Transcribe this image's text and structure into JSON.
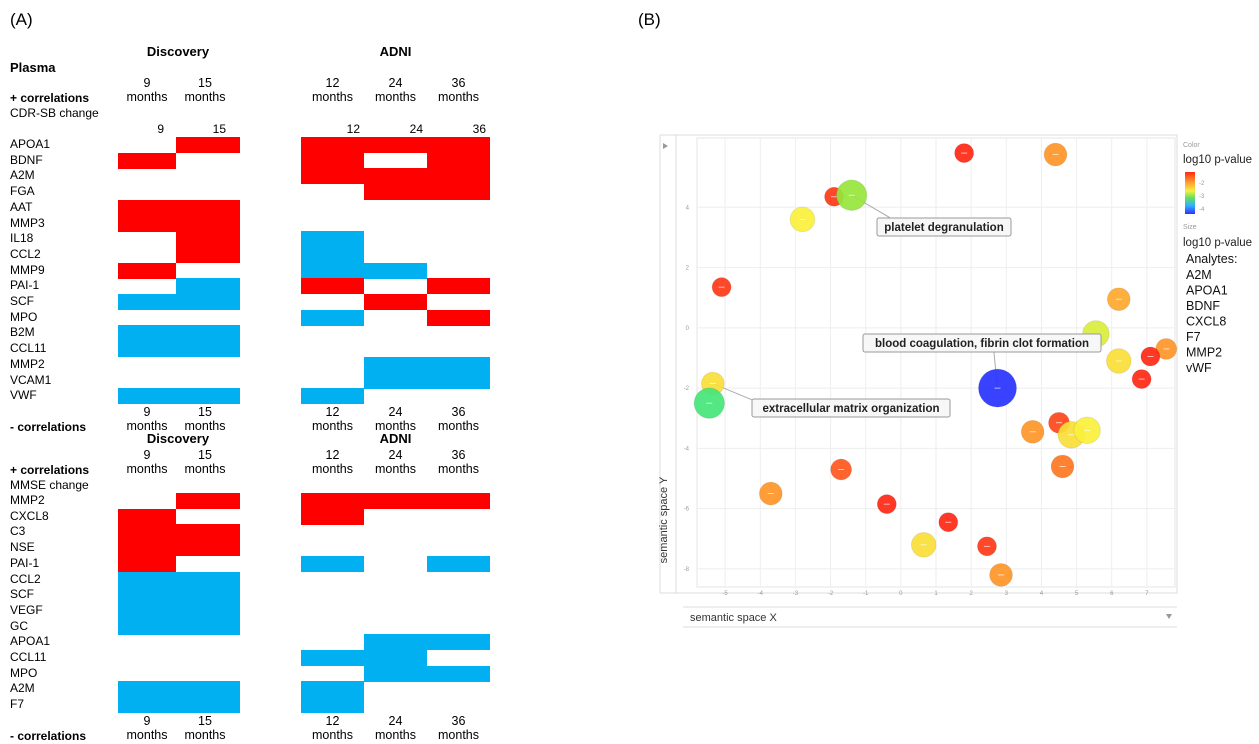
{
  "panel_a_label": "(A)",
  "panel_b_label": "(B)",
  "colors": {
    "red": "#ff0000",
    "blue": "#00b0f0"
  },
  "chart_data": [
    {
      "type": "heatmap",
      "title": "Plasma",
      "measure": "CDR-SB change",
      "groups": [
        "Discovery",
        "ADNI"
      ],
      "columns": {
        "Discovery": [
          "9",
          "15"
        ],
        "ADNI": [
          "12",
          "24",
          "36"
        ]
      },
      "column_headers": {
        "Discovery": [
          "9\nmonths",
          "15\nmonths"
        ],
        "ADNI": [
          "12\nmonths",
          "24\nmonths",
          "36\nmonths"
        ]
      },
      "pos_label": "+ correlations",
      "neg_label": "- correlations",
      "rows": [
        "APOA1",
        "BDNF",
        "A2M",
        "FGA",
        "AAT",
        "MMP3",
        "IL18",
        "CCL2",
        "MMP9",
        "PAI-1",
        "SCF",
        "MPO",
        "B2M",
        "CCL11",
        "MMP2",
        "VCAM1",
        " VWF"
      ],
      "discovery": [
        [
          0,
          1
        ],
        [
          1,
          0
        ],
        [
          0,
          0
        ],
        [
          0,
          0
        ],
        [
          1,
          1
        ],
        [
          1,
          1
        ],
        [
          0,
          1
        ],
        [
          0,
          1
        ],
        [
          1,
          0
        ],
        [
          0,
          -1
        ],
        [
          -1,
          -1
        ],
        [
          0,
          0
        ],
        [
          -1,
          -1
        ],
        [
          -1,
          -1
        ],
        [
          0,
          0
        ],
        [
          0,
          0
        ],
        [
          -1,
          -1
        ]
      ],
      "adni": [
        [
          1,
          1,
          1
        ],
        [
          1,
          0,
          1
        ],
        [
          1,
          1,
          1
        ],
        [
          0,
          1,
          1
        ],
        [
          0,
          0,
          0
        ],
        [
          0,
          0,
          0
        ],
        [
          -1,
          0,
          0
        ],
        [
          -1,
          0,
          0
        ],
        [
          -1,
          -1,
          0
        ],
        [
          1,
          0,
          1
        ],
        [
          0,
          1,
          0
        ],
        [
          -1,
          0,
          1
        ],
        [
          0,
          0,
          0
        ],
        [
          0,
          0,
          0
        ],
        [
          0,
          -1,
          -1
        ],
        [
          0,
          -1,
          -1
        ],
        [
          -1,
          0,
          0
        ]
      ]
    },
    {
      "type": "heatmap",
      "measure": "MMSE change",
      "groups": [
        "Discovery",
        "ADNI"
      ],
      "column_headers": {
        "Discovery": [
          "9\nmonths",
          "15\nmonths"
        ],
        "ADNI": [
          "12\nmonths",
          "24\nmonths",
          "36\nmonths"
        ]
      },
      "pos_label": "+ correlations",
      "neg_label": "- correlations",
      "rows": [
        "MMP2",
        "CXCL8",
        "C3",
        "NSE",
        "PAI-1",
        "CCL2",
        "SCF",
        "VEGF",
        "GC",
        "APOA1",
        "CCL11",
        "MPO",
        "A2M",
        "F7"
      ],
      "discovery": [
        [
          0,
          1
        ],
        [
          1,
          0
        ],
        [
          1,
          1
        ],
        [
          1,
          1
        ],
        [
          1,
          0
        ],
        [
          -1,
          -1
        ],
        [
          -1,
          -1
        ],
        [
          -1,
          -1
        ],
        [
          -1,
          -1
        ],
        [
          0,
          0
        ],
        [
          0,
          0
        ],
        [
          0,
          0
        ],
        [
          -1,
          -1
        ],
        [
          -1,
          -1
        ]
      ],
      "adni": [
        [
          1,
          1,
          1
        ],
        [
          1,
          0,
          0
        ],
        [
          0,
          0,
          0
        ],
        [
          0,
          0,
          0
        ],
        [
          -1,
          0,
          -1
        ],
        [
          0,
          0,
          0
        ],
        [
          0,
          0,
          0
        ],
        [
          0,
          0,
          0
        ],
        [
          0,
          0,
          0
        ],
        [
          0,
          -1,
          -1
        ],
        [
          -1,
          -1,
          0
        ],
        [
          0,
          -1,
          -1
        ],
        [
          -1,
          0,
          0
        ],
        [
          -1,
          0,
          0
        ]
      ]
    },
    {
      "type": "scatter",
      "xlabel": "semantic space X",
      "ylabel": "semantic space Y",
      "xlim": [
        -5.8,
        7.8
      ],
      "ylim": [
        -8.6,
        6.3
      ],
      "xticks": [
        -5,
        -4,
        -3,
        -2,
        -1,
        0,
        1,
        2,
        3,
        4,
        5,
        6,
        7
      ],
      "yticks": [
        4,
        2,
        0,
        -2,
        -4,
        -6,
        -8
      ],
      "legend": {
        "color_title": "Color",
        "color_label": "log10 p-value",
        "color_ticks": [
          "-2",
          "-3",
          "-4"
        ],
        "size_title": "Size",
        "size_label": "log10 p-value",
        "analytes_title": "Analytes:",
        "analytes": [
          "A2M",
          "APOA1",
          "BDNF",
          "CXCL8",
          "F7",
          "MMP2",
          "vWF"
        ]
      },
      "points": [
        {
          "x": 1.8,
          "y": 5.8,
          "logp": -1.5,
          "size": 1
        },
        {
          "x": 4.4,
          "y": 5.75,
          "logp": -2.2,
          "size": 1.2
        },
        {
          "x": -1.9,
          "y": 4.35,
          "logp": -1.6,
          "size": 1
        },
        {
          "x": -1.4,
          "y": 4.4,
          "logp": -3.0,
          "size": 1.6
        },
        {
          "x": -2.8,
          "y": 3.6,
          "logp": -2.7,
          "size": 1.3
        },
        {
          "x": -5.1,
          "y": 1.35,
          "logp": -1.6,
          "size": 1
        },
        {
          "x": 6.2,
          "y": 0.95,
          "logp": -2.3,
          "size": 1.2
        },
        {
          "x": 5.55,
          "y": -0.2,
          "logp": -2.8,
          "size": 1.4
        },
        {
          "x": 7.55,
          "y": -0.7,
          "logp": -2.2,
          "size": 1.1
        },
        {
          "x": 7.1,
          "y": -0.95,
          "logp": -1.5,
          "size": 1
        },
        {
          "x": 6.2,
          "y": -1.1,
          "logp": -2.6,
          "size": 1.3
        },
        {
          "x": 6.85,
          "y": -1.7,
          "logp": -1.5,
          "size": 1
        },
        {
          "x": 2.75,
          "y": -2.0,
          "logp": -4.2,
          "size": 2
        },
        {
          "x": -5.35,
          "y": -1.85,
          "logp": -2.6,
          "size": 1.2
        },
        {
          "x": -5.45,
          "y": -2.5,
          "logp": -3.3,
          "size": 1.6
        },
        {
          "x": 4.5,
          "y": -3.15,
          "logp": -1.7,
          "size": 1.1
        },
        {
          "x": 3.75,
          "y": -3.45,
          "logp": -2.2,
          "size": 1.2
        },
        {
          "x": 4.85,
          "y": -3.55,
          "logp": -2.6,
          "size": 1.4
        },
        {
          "x": 5.3,
          "y": -3.4,
          "logp": -2.7,
          "size": 1.4
        },
        {
          "x": 4.6,
          "y": -4.6,
          "logp": -2.0,
          "size": 1.2
        },
        {
          "x": -1.7,
          "y": -4.7,
          "logp": -1.8,
          "size": 1.1
        },
        {
          "x": -3.7,
          "y": -5.5,
          "logp": -2.2,
          "size": 1.2
        },
        {
          "x": -0.4,
          "y": -5.85,
          "logp": -1.5,
          "size": 1
        },
        {
          "x": 1.35,
          "y": -6.45,
          "logp": -1.5,
          "size": 1
        },
        {
          "x": 0.65,
          "y": -7.2,
          "logp": -2.6,
          "size": 1.3
        },
        {
          "x": 2.45,
          "y": -7.25,
          "logp": -1.6,
          "size": 1
        },
        {
          "x": 2.85,
          "y": -8.2,
          "logp": -2.2,
          "size": 1.2
        }
      ],
      "annotations": [
        {
          "text": "platelet degranulation",
          "point": 3
        },
        {
          "text": "blood coagulation, fibrin clot formation",
          "point": 12
        },
        {
          "text": "extracellular matrix organization",
          "point": 13
        }
      ]
    }
  ]
}
